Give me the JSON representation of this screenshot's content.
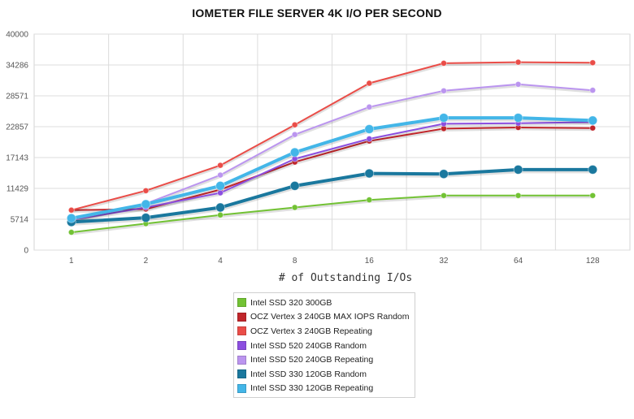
{
  "chart_data": {
    "type": "line",
    "title": "IOMETER FILE SERVER 4K I/O PER SECOND",
    "xlabel": "# of Outstanding I/Os",
    "ylabel": "",
    "categories": [
      "1",
      "2",
      "4",
      "8",
      "16",
      "32",
      "64",
      "128"
    ],
    "yticks": [
      "0",
      "5714",
      "11429",
      "17143",
      "22857",
      "28571",
      "34286",
      "40000"
    ],
    "ylim": [
      0,
      40000
    ],
    "grid": true,
    "legend": "bottom",
    "series": [
      {
        "name": "Intel SSD 320 300GB",
        "color": "#72c234",
        "width": 2,
        "radius": 3.5,
        "values": [
          3300,
          4900,
          6500,
          7900,
          9300,
          10100,
          10100,
          10100
        ]
      },
      {
        "name": "OCZ Vertex 3 240GB MAX IOPS Random",
        "color": "#c0262b",
        "width": 2,
        "radius": 3.5,
        "values": [
          7400,
          7600,
          11200,
          16300,
          20200,
          22500,
          22700,
          22600
        ]
      },
      {
        "name": "OCZ Vertex 3 240GB Repeating",
        "color": "#ea4d48",
        "width": 2,
        "radius": 3.5,
        "values": [
          7400,
          11000,
          15700,
          23200,
          30900,
          34600,
          34800,
          34700
        ]
      },
      {
        "name": "Intel SSD 520 240GB Random",
        "color": "#8c4fe0",
        "width": 2,
        "radius": 3.5,
        "values": [
          5600,
          7900,
          10600,
          16900,
          20600,
          23400,
          23500,
          23700
        ]
      },
      {
        "name": "Intel SSD 520 240GB Repeating",
        "color": "#bb95ef",
        "width": 2,
        "radius": 3.5,
        "values": [
          5600,
          8600,
          13900,
          21400,
          26500,
          29500,
          30700,
          29600
        ]
      },
      {
        "name": "Intel SSD 330 120GB Random",
        "color": "#1a789e",
        "width": 4,
        "radius": 5.5,
        "values": [
          5200,
          6000,
          7900,
          11900,
          14200,
          14100,
          14900,
          14900
        ]
      },
      {
        "name": "Intel SSD 330 120GB Repeating",
        "color": "#43b6e8",
        "width": 4,
        "radius": 5.5,
        "values": [
          5900,
          8500,
          11900,
          18100,
          22400,
          24500,
          24500,
          24000
        ]
      }
    ]
  }
}
